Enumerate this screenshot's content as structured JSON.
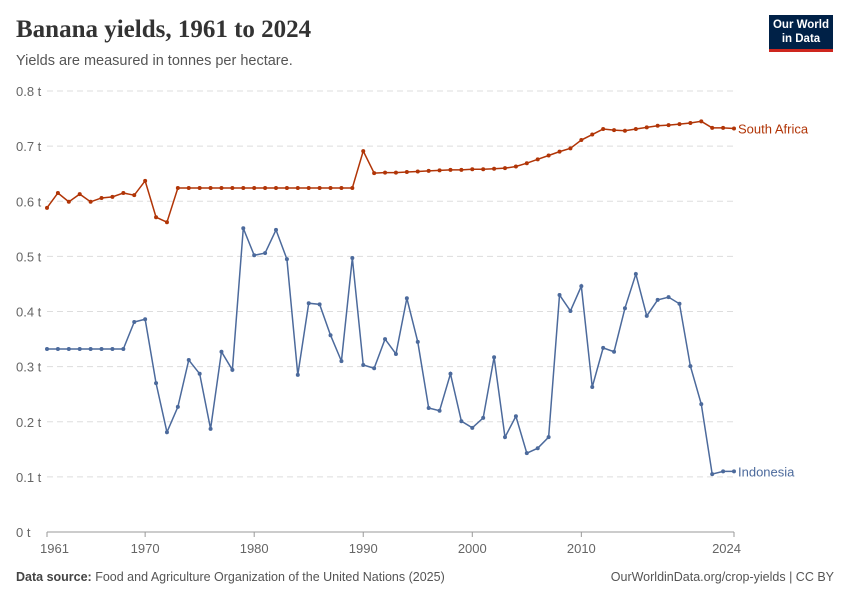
{
  "header": {
    "title": "Banana yields, 1961 to 2024",
    "subtitle": "Yields are measured in tonnes per hectare.",
    "logo": "Our World in Data"
  },
  "footer": {
    "source_label": "Data source:",
    "source": "Food and Agriculture Organization of the United Nations (2025)",
    "link": "OurWorldinData.org/crop-yields | CC BY"
  },
  "chart_data": {
    "type": "line",
    "title": "Banana yields, 1961 to 2024",
    "subtitle": "Yields are measured in tonnes per hectare.",
    "xlim": [
      1961,
      2024
    ],
    "ylim": [
      0,
      0.8
    ],
    "x_ticks": [
      1961,
      1970,
      1980,
      1990,
      2000,
      2010,
      2024
    ],
    "y_ticks": [
      0,
      0.1,
      0.2,
      0.3,
      0.4,
      0.5,
      0.6,
      0.7,
      0.8
    ],
    "y_tick_labels": [
      "0 t",
      "0.1 t",
      "0.2 t",
      "0.3 t",
      "0.4 t",
      "0.5 t",
      "0.6 t",
      "0.7 t",
      "0.8 t"
    ],
    "grid": "horizontal dashed",
    "legend": "inline-right",
    "x_start": 1961,
    "series": [
      {
        "name": "South Africa",
        "color": "#b13507",
        "values": [
          0.588,
          0.615,
          0.599,
          0.613,
          0.599,
          0.606,
          0.608,
          0.615,
          0.611,
          0.637,
          0.571,
          0.562,
          0.624,
          0.624,
          0.624,
          0.624,
          0.624,
          0.624,
          0.624,
          0.624,
          0.624,
          0.624,
          0.624,
          0.624,
          0.624,
          0.624,
          0.624,
          0.624,
          0.624,
          0.691,
          0.651,
          0.652,
          0.652,
          0.653,
          0.654,
          0.655,
          0.656,
          0.657,
          0.657,
          0.658,
          0.658,
          0.659,
          0.66,
          0.663,
          0.669,
          0.676,
          0.683,
          0.69,
          0.696,
          0.711,
          0.721,
          0.731,
          0.729,
          0.728,
          0.731,
          0.734,
          0.737,
          0.738,
          0.74,
          0.742,
          0.745,
          0.733,
          0.733,
          0.732
        ]
      },
      {
        "name": "Indonesia",
        "color": "#4c6a9c",
        "values": [
          0.332,
          0.332,
          0.332,
          0.332,
          0.332,
          0.332,
          0.332,
          0.332,
          0.381,
          0.386,
          0.27,
          0.181,
          0.227,
          0.312,
          0.287,
          0.187,
          0.327,
          0.294,
          0.551,
          0.502,
          0.506,
          0.548,
          0.495,
          0.285,
          0.415,
          0.413,
          0.357,
          0.31,
          0.497,
          0.303,
          0.297,
          0.35,
          0.323,
          0.424,
          0.345,
          0.225,
          0.22,
          0.287,
          0.201,
          0.189,
          0.207,
          0.317,
          0.172,
          0.21,
          0.143,
          0.152,
          0.172,
          0.43,
          0.401,
          0.446,
          0.263,
          0.334,
          0.327,
          0.406,
          0.468,
          0.392,
          0.421,
          0.426,
          0.414,
          0.301,
          0.232,
          0.105,
          0.11,
          0.11
        ]
      }
    ]
  }
}
